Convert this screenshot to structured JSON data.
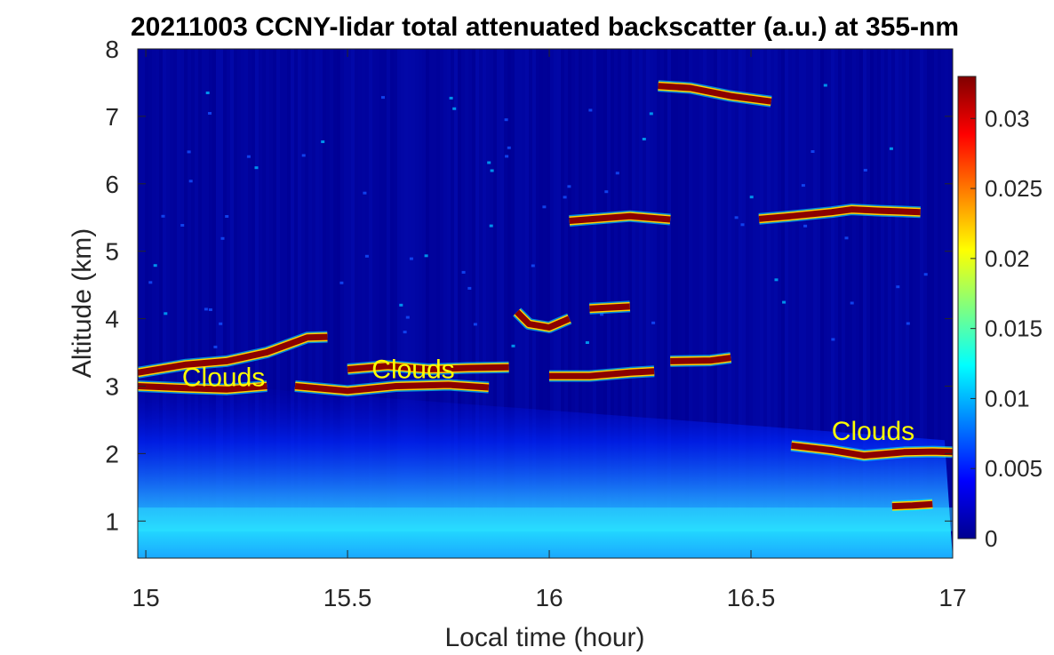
{
  "chart_data": {
    "type": "heatmap",
    "title": "20211003 CCNY-lidar total attenuated backscatter (a.u.) at 355-nm",
    "xlabel": "Local time (hour)",
    "ylabel": "Altitude (km)",
    "xlim": [
      14.98,
      17
    ],
    "ylim": [
      0.45,
      8
    ],
    "x_ticks": [
      15,
      15.5,
      16,
      16.5,
      17
    ],
    "x_tick_labels": [
      "15",
      "15.5",
      "16",
      "16.5",
      "17"
    ],
    "y_ticks": [
      1,
      2,
      3,
      4,
      5,
      6,
      7,
      8
    ],
    "y_tick_labels": [
      "1",
      "2",
      "3",
      "4",
      "5",
      "6",
      "7",
      "8"
    ],
    "colormap": "jet",
    "colorbar": {
      "range": [
        0,
        0.033
      ],
      "ticks": [
        0,
        0.005,
        0.01,
        0.015,
        0.02,
        0.025,
        0.03
      ],
      "tick_labels": [
        "0",
        "0.005",
        "0.01",
        "0.015",
        "0.02",
        "0.025",
        "0.03"
      ]
    },
    "annotations": [
      {
        "text": "Clouds",
        "x": 15.09,
        "y": 3.0,
        "color": "#ffff00"
      },
      {
        "text": "Clouds",
        "x": 15.56,
        "y": 3.12,
        "color": "#ffff00"
      },
      {
        "text": "Clouds",
        "x": 16.7,
        "y": 2.2,
        "color": "#ffff00"
      }
    ],
    "cloud_layers": [
      {
        "name": "low-1",
        "points": [
          [
            14.98,
            3.0
          ],
          [
            15.1,
            2.97
          ],
          [
            15.2,
            2.95
          ],
          [
            15.3,
            3.0
          ]
        ]
      },
      {
        "name": "low-2",
        "points": [
          [
            15.37,
            3.0
          ],
          [
            15.5,
            2.93
          ],
          [
            15.62,
            3.0
          ],
          [
            15.75,
            3.02
          ],
          [
            15.85,
            2.98
          ]
        ]
      },
      {
        "name": "rising",
        "points": [
          [
            14.98,
            3.2
          ],
          [
            15.1,
            3.32
          ],
          [
            15.2,
            3.37
          ],
          [
            15.3,
            3.5
          ],
          [
            15.4,
            3.72
          ],
          [
            15.45,
            3.73
          ]
        ]
      },
      {
        "name": "mid-1",
        "points": [
          [
            15.5,
            3.25
          ],
          [
            15.6,
            3.3
          ],
          [
            15.7,
            3.25
          ],
          [
            15.8,
            3.27
          ],
          [
            15.9,
            3.28
          ]
        ]
      },
      {
        "name": "mid-2",
        "points": [
          [
            15.92,
            4.1
          ],
          [
            15.95,
            3.92
          ],
          [
            16.0,
            3.87
          ],
          [
            16.05,
            4.0
          ]
        ]
      },
      {
        "name": "mid-3",
        "points": [
          [
            16.0,
            3.15
          ],
          [
            16.1,
            3.15
          ],
          [
            16.2,
            3.2
          ],
          [
            16.26,
            3.22
          ]
        ]
      },
      {
        "name": "mid-4",
        "points": [
          [
            16.3,
            3.37
          ],
          [
            16.4,
            3.38
          ],
          [
            16.45,
            3.42
          ]
        ]
      },
      {
        "name": "mid-5",
        "points": [
          [
            16.1,
            4.15
          ],
          [
            16.2,
            4.18
          ]
        ]
      },
      {
        "name": "upper-1",
        "points": [
          [
            16.05,
            5.45
          ],
          [
            16.2,
            5.52
          ],
          [
            16.3,
            5.47
          ]
        ]
      },
      {
        "name": "upper-2",
        "points": [
          [
            16.52,
            5.48
          ],
          [
            16.6,
            5.52
          ],
          [
            16.7,
            5.58
          ],
          [
            16.75,
            5.62
          ],
          [
            16.82,
            5.6
          ],
          [
            16.92,
            5.58
          ]
        ]
      },
      {
        "name": "top",
        "points": [
          [
            16.27,
            7.45
          ],
          [
            16.35,
            7.42
          ],
          [
            16.45,
            7.3
          ],
          [
            16.55,
            7.22
          ]
        ]
      },
      {
        "name": "low-right",
        "points": [
          [
            16.6,
            2.12
          ],
          [
            16.7,
            2.05
          ],
          [
            16.78,
            1.97
          ],
          [
            16.88,
            2.02
          ],
          [
            16.95,
            2.03
          ],
          [
            17.0,
            2.02
          ]
        ]
      },
      {
        "name": "boundary",
        "points": [
          [
            16.85,
            1.22
          ],
          [
            16.9,
            1.23
          ],
          [
            16.95,
            1.25
          ]
        ]
      }
    ]
  }
}
